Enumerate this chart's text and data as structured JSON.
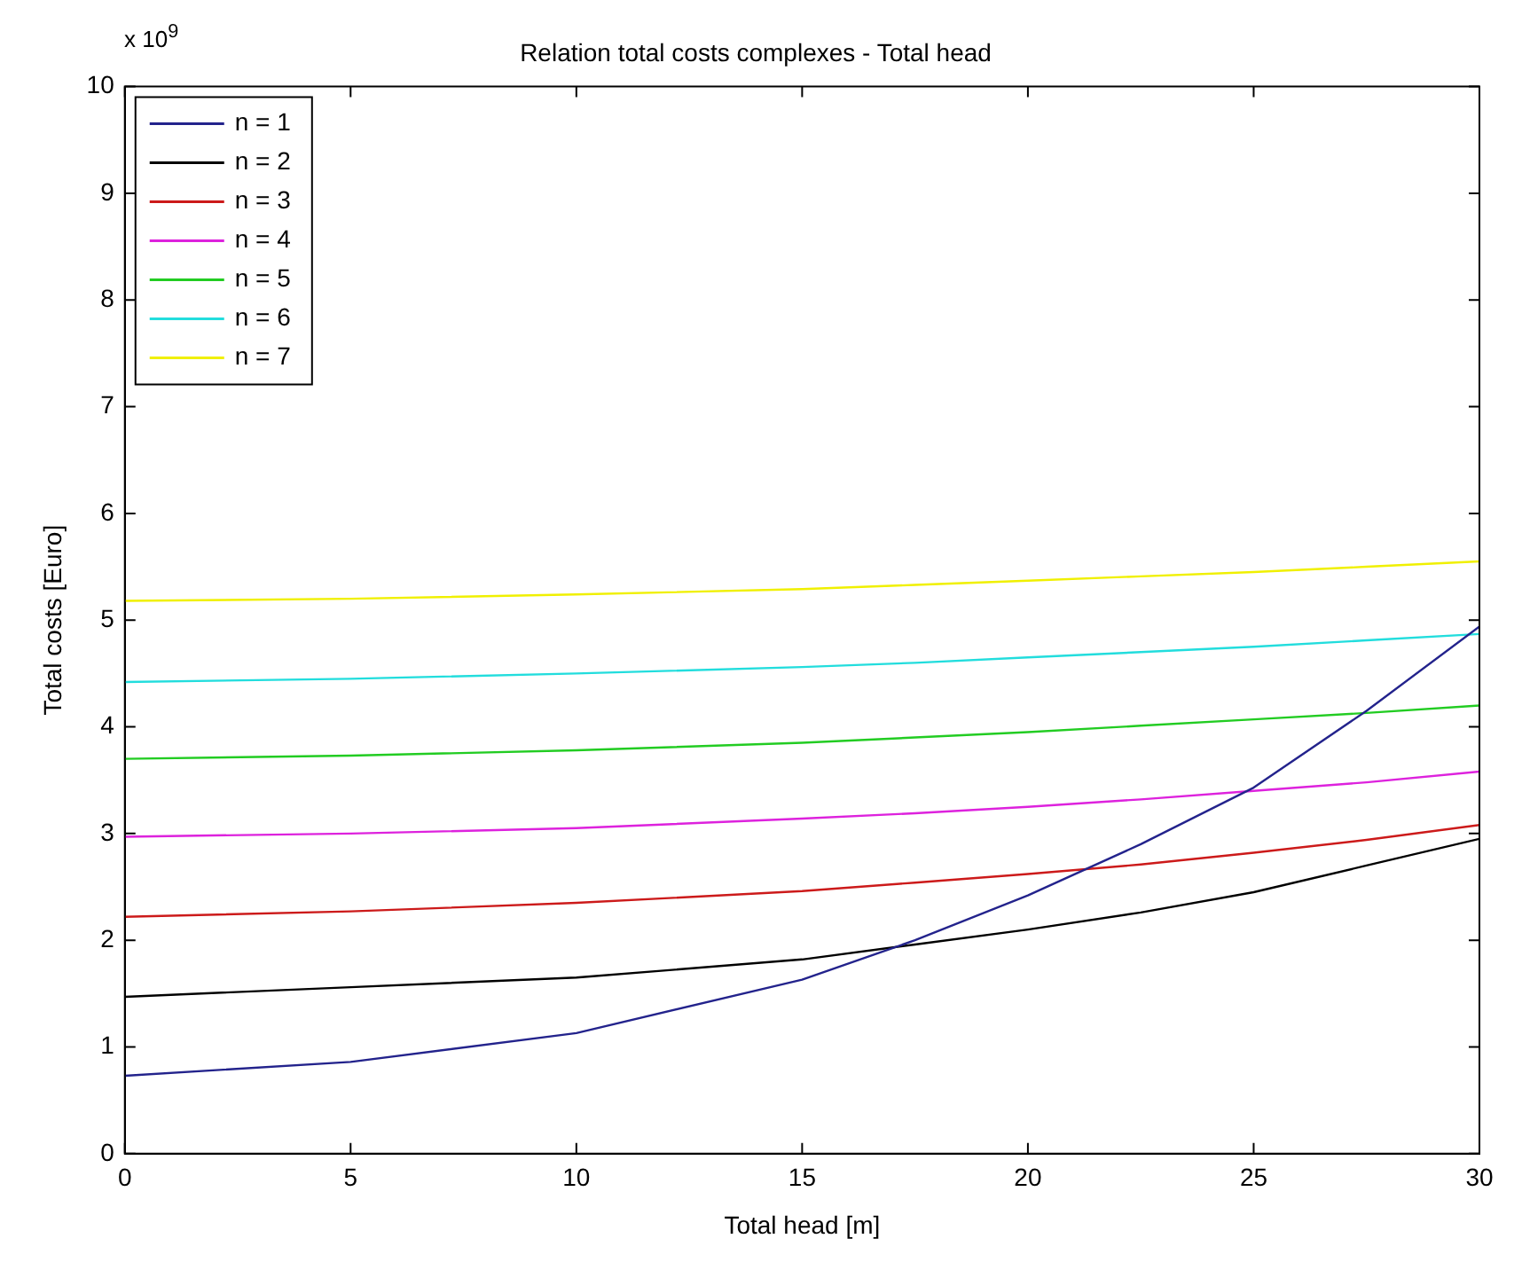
{
  "chart_data": {
    "type": "line",
    "title": "Relation total costs complexes - Total head",
    "xlabel": "Total head [m]",
    "ylabel": "Total costs [Euro]",
    "annotations": [
      "x 10$^{9}$"
    ],
    "x": [
      0,
      5,
      10,
      15,
      17.5,
      20,
      22.5,
      25,
      27.5,
      30
    ],
    "series": [
      {
        "name": "n = 1",
        "color": "#23238c",
        "values": [
          0.73,
          0.86,
          1.13,
          1.63,
          2.0,
          2.42,
          2.9,
          3.43,
          4.15,
          4.94
        ]
      },
      {
        "name": "n = 2",
        "color": "#000000",
        "values": [
          1.47,
          1.56,
          1.65,
          1.82,
          1.96,
          2.1,
          2.26,
          2.45,
          2.7,
          2.95
        ]
      },
      {
        "name": "n = 3",
        "color": "#cc1a1a",
        "values": [
          2.22,
          2.27,
          2.35,
          2.46,
          2.54,
          2.62,
          2.71,
          2.82,
          2.94,
          3.08
        ]
      },
      {
        "name": "n = 4",
        "color": "#dd22dd",
        "values": [
          2.97,
          3.0,
          3.05,
          3.14,
          3.19,
          3.25,
          3.32,
          3.4,
          3.48,
          3.58
        ]
      },
      {
        "name": "n = 5",
        "color": "#22cc22",
        "values": [
          3.7,
          3.73,
          3.78,
          3.85,
          3.9,
          3.95,
          4.01,
          4.07,
          4.13,
          4.2
        ]
      },
      {
        "name": "n = 6",
        "color": "#22dddd",
        "values": [
          4.42,
          4.45,
          4.5,
          4.56,
          4.6,
          4.65,
          4.7,
          4.75,
          4.81,
          4.87
        ]
      },
      {
        "name": "n = 7",
        "color": "#f0f000",
        "values": [
          5.18,
          5.2,
          5.24,
          5.29,
          5.33,
          5.37,
          5.41,
          5.45,
          5.5,
          5.55
        ]
      }
    ],
    "xlim": [
      0,
      30
    ],
    "xticks": [
      0,
      5,
      10,
      15,
      20,
      25,
      30
    ],
    "ylim": [
      0,
      10
    ],
    "yticks": [
      0,
      1,
      2,
      3,
      4,
      5,
      6,
      7,
      8,
      9,
      10
    ],
    "grid": false,
    "legend": "top left",
    "line_style": "solid",
    "marker": "none"
  }
}
